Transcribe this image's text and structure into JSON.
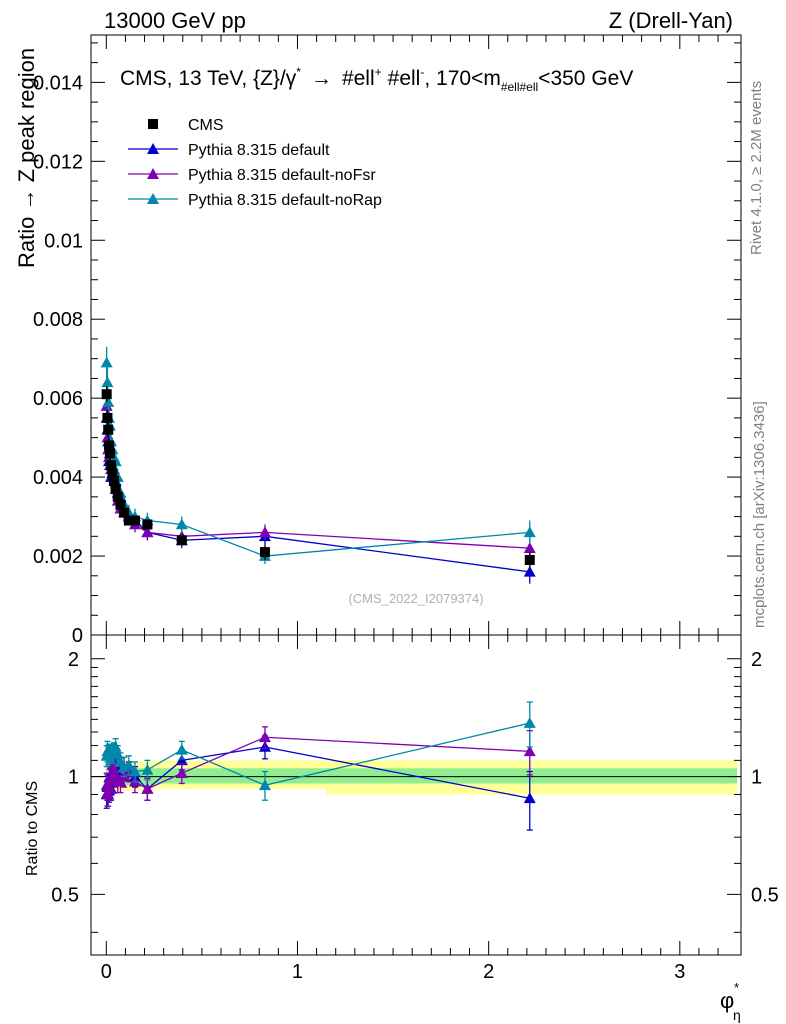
{
  "header": {
    "left": "13000 GeV pp",
    "right": "Z (Drell-Yan)"
  },
  "side_labels": {
    "rivet": "Rivet 4.1.0, ≥ 2.2M events",
    "mcplots": "mcplots.cern.ch [arXiv:1306.3436]"
  },
  "watermark": "(CMS_2022_I2079374)",
  "chart_data": [
    {
      "type": "scatter",
      "panel": "main",
      "title": "CMS, 13 TeV, {Z}/γ* → #ell+ #ell-, 170<m_#ell#ell<350 GeV",
      "title_parts": {
        "prefix": "CMS, 13 TeV, {Z}/γ",
        "star": "*",
        "arrow": "→",
        "ell1": "#ell",
        "plus": "+",
        "ell2": "#ell",
        "minus": "-",
        "mid": ", 170<m",
        "sub": "#ell#ell",
        "suffix": "<350 GeV"
      },
      "xlabel": "φ",
      "xlabel_sup": "*",
      "xlabel_sub": "η",
      "ylabel": "Ratio → Z peak region",
      "xlim": [
        -0.08,
        3.32
      ],
      "ylim": [
        0,
        0.0152
      ],
      "yticks": [
        0,
        0.002,
        0.004,
        0.006,
        0.008,
        0.01,
        0.012,
        0.014
      ],
      "ytick_labels": [
        "0",
        "0.002",
        "0.004",
        "0.006",
        "0.008",
        "0.01",
        "0.012",
        "0.014"
      ],
      "x": [
        0.002,
        0.006,
        0.01,
        0.014,
        0.019,
        0.025,
        0.032,
        0.04,
        0.049,
        0.06,
        0.074,
        0.093,
        0.118,
        0.15,
        0.215,
        0.395,
        0.83,
        2.215
      ],
      "series": [
        {
          "name": "CMS",
          "color": "#000000",
          "marker": "square",
          "values": [
            0.0061,
            0.0055,
            0.0052,
            0.0048,
            0.0046,
            0.0043,
            0.0041,
            0.0039,
            0.0037,
            0.0035,
            0.0033,
            0.0031,
            0.0029,
            0.0029,
            0.0028,
            0.0024,
            0.0021,
            0.0019
          ],
          "errors": [
            0.0002,
            0.0002,
            0.0002,
            0.0002,
            0.0002,
            0.0001,
            0.0001,
            0.0001,
            0.0001,
            0.0001,
            0.0001,
            0.0001,
            0.0001,
            0.0001,
            0.0001,
            0.0001,
            0.0002,
            0.0002
          ]
        },
        {
          "name": "Pythia 8.315 default",
          "color": "#0000cc",
          "marker": "triangle",
          "values": [
            0.0055,
            0.0052,
            0.0049,
            0.0044,
            0.0046,
            0.004,
            0.0041,
            0.0042,
            0.0039,
            0.0036,
            0.0035,
            0.0033,
            0.003,
            0.0029,
            0.0026,
            0.0024,
            0.0025,
            0.0016
          ],
          "errors": [
            0.0004,
            0.0004,
            0.0003,
            0.0003,
            0.0003,
            0.0003,
            0.0003,
            0.0003,
            0.0002,
            0.0002,
            0.0002,
            0.0002,
            0.0002,
            0.0002,
            0.0002,
            0.0002,
            0.0002,
            0.0003
          ]
        },
        {
          "name": "Pythia 8.315 default-noFsr",
          "color": "#8000b0",
          "marker": "triangle",
          "values": [
            0.0058,
            0.005,
            0.0047,
            0.0045,
            0.0043,
            0.0042,
            0.0044,
            0.004,
            0.0037,
            0.0034,
            0.0032,
            0.0031,
            0.003,
            0.0028,
            0.0026,
            0.0025,
            0.0026,
            0.0022
          ],
          "errors": [
            0.0004,
            0.0004,
            0.0003,
            0.0003,
            0.0003,
            0.0003,
            0.0003,
            0.0003,
            0.0002,
            0.0002,
            0.0002,
            0.0002,
            0.0002,
            0.0002,
            0.0002,
            0.0002,
            0.0002,
            0.0003
          ]
        },
        {
          "name": "Pythia 8.315 default-noRap",
          "color": "#0088aa",
          "marker": "triangle",
          "values": [
            0.0069,
            0.0064,
            0.0059,
            0.0055,
            0.0053,
            0.0049,
            0.0047,
            0.0045,
            0.0044,
            0.004,
            0.0036,
            0.0033,
            0.0031,
            0.003,
            0.0029,
            0.0028,
            0.002,
            0.0026
          ],
          "errors": [
            0.0004,
            0.0004,
            0.0003,
            0.0003,
            0.0003,
            0.0003,
            0.0003,
            0.0003,
            0.0002,
            0.0002,
            0.0002,
            0.0002,
            0.0002,
            0.0002,
            0.0002,
            0.0002,
            0.0002,
            0.0003
          ]
        }
      ]
    },
    {
      "type": "scatter",
      "panel": "ratio",
      "ylabel": "Ratio to CMS",
      "xlim": [
        -0.08,
        3.32
      ],
      "xticks": [
        0,
        1,
        2,
        3
      ],
      "xtick_labels": [
        "0",
        "1",
        "2",
        "3"
      ],
      "ylim": [
        0.35,
        2.3
      ],
      "yscale": "log",
      "yticks": [
        0.5,
        1,
        2
      ],
      "ytick_labels": [
        "0.5",
        "1",
        "2"
      ],
      "reference": 1,
      "bands": {
        "stat_color": "#90ee90",
        "total_color": "#ffff99",
        "edges": [
          0.0,
          0.25,
          1.15,
          3.3
        ],
        "stat_lo": [
          0.95,
          0.96,
          0.96
        ],
        "stat_hi": [
          1.05,
          1.05,
          1.05
        ],
        "total_lo": [
          0.92,
          0.93,
          0.9
        ],
        "total_hi": [
          1.09,
          1.1,
          1.1
        ]
      },
      "x": [
        0.002,
        0.006,
        0.01,
        0.014,
        0.019,
        0.025,
        0.032,
        0.04,
        0.049,
        0.06,
        0.074,
        0.093,
        0.118,
        0.15,
        0.215,
        0.395,
        0.83,
        2.215
      ],
      "series": [
        {
          "name": "Pythia 8.315 default",
          "color": "#0000cc",
          "values": [
            0.9,
            0.94,
            0.94,
            0.92,
            1.0,
            0.93,
            1.0,
            1.08,
            1.05,
            1.03,
            1.06,
            1.06,
            1.03,
            1.0,
            0.93,
            1.1,
            1.19,
            0.88
          ],
          "errors": [
            0.07,
            0.07,
            0.06,
            0.06,
            0.06,
            0.06,
            0.06,
            0.07,
            0.06,
            0.06,
            0.06,
            0.06,
            0.06,
            0.06,
            0.06,
            0.06,
            0.08,
            0.15
          ]
        },
        {
          "name": "Pythia 8.315 default-noFsr",
          "color": "#8000b0",
          "values": [
            0.95,
            0.91,
            0.9,
            0.94,
            0.93,
            0.98,
            1.07,
            1.03,
            1.0,
            0.97,
            0.97,
            1.0,
            1.03,
            0.97,
            0.93,
            1.02,
            1.26,
            1.16
          ],
          "errors": [
            0.07,
            0.07,
            0.06,
            0.06,
            0.06,
            0.06,
            0.06,
            0.07,
            0.06,
            0.06,
            0.06,
            0.06,
            0.06,
            0.06,
            0.06,
            0.06,
            0.08,
            0.15
          ]
        },
        {
          "name": "Pythia 8.315 default-noRap",
          "color": "#0088aa",
          "values": [
            1.13,
            1.16,
            1.13,
            1.15,
            1.15,
            1.14,
            1.15,
            1.15,
            1.19,
            1.14,
            1.09,
            1.06,
            1.07,
            1.03,
            1.04,
            1.17,
            0.95,
            1.37
          ],
          "errors": [
            0.07,
            0.07,
            0.06,
            0.06,
            0.06,
            0.06,
            0.06,
            0.07,
            0.06,
            0.06,
            0.06,
            0.06,
            0.06,
            0.06,
            0.06,
            0.06,
            0.08,
            0.18
          ]
        }
      ]
    }
  ]
}
